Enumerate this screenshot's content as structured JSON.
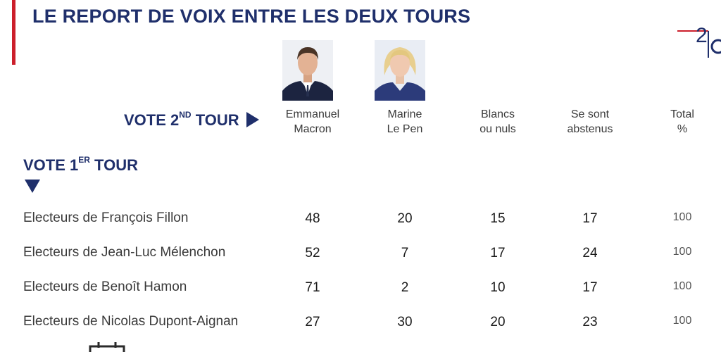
{
  "title": "LE REPORT DE VOIX ENTRE LES DEUX TOURS",
  "logo_text": "2",
  "vote2": {
    "label": "VOTE 2",
    "sup": "ND",
    "rest": " TOUR"
  },
  "vote1": {
    "label": "VOTE 1",
    "sup": "ER",
    "rest": " TOUR"
  },
  "columns": [
    {
      "line1": "Emmanuel",
      "line2": "Macron"
    },
    {
      "line1": "Marine",
      "line2": "Le Pen"
    },
    {
      "line1": "Blancs",
      "line2": "ou nuls"
    },
    {
      "line1": "Se sont",
      "line2": "abstenus"
    },
    {
      "line1": "Total",
      "line2": "%"
    }
  ],
  "rows": [
    {
      "label": "Electeurs de François Fillon",
      "values": [
        "48",
        "20",
        "15",
        "17",
        "100"
      ]
    },
    {
      "label": "Electeurs de Jean-Luc Mélenchon",
      "values": [
        "52",
        "7",
        "17",
        "24",
        "100"
      ]
    },
    {
      "label": "Electeurs de Benoît Hamon",
      "values": [
        "71",
        "2",
        "10",
        "17",
        "100"
      ]
    },
    {
      "label": "Electeurs de Nicolas Dupont-Aignan",
      "values": [
        "27",
        "30",
        "20",
        "23",
        "100"
      ]
    }
  ],
  "colors": {
    "navy": "#1f2f6b",
    "red": "#cc1f2b"
  }
}
